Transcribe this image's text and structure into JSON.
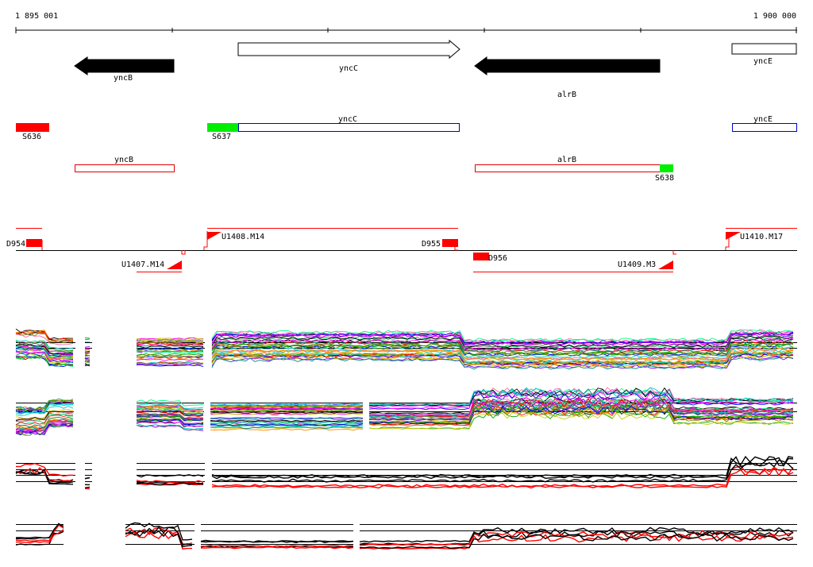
{
  "ruler": {
    "start_label": "1 895 001",
    "end_label": "1 900 000"
  },
  "genes": [
    {
      "id": "yncB",
      "label": "yncB",
      "strand": "-",
      "fill": "#000000"
    },
    {
      "id": "yncC",
      "label": "yncC",
      "strand": "+",
      "fill": "#ffffff"
    },
    {
      "id": "alrB",
      "label": "alrB",
      "strand": "-",
      "fill": "#000000"
    },
    {
      "id": "yncE",
      "label": "yncE",
      "strand": "+",
      "fill": "#ffffff"
    }
  ],
  "segments": [
    {
      "id": "S636",
      "label": "S636",
      "color": "#ff0000"
    },
    {
      "id": "S637",
      "label": "S637",
      "color": "#00ee00"
    },
    {
      "id": "S638",
      "label": "S638",
      "color": "#00ee00"
    }
  ],
  "transcript_boxes": [
    {
      "id": "yncC",
      "label": "yncC",
      "color": "#0000cc"
    },
    {
      "id": "yncE",
      "label": "yncE",
      "color": "#0000cc"
    },
    {
      "id": "yncB",
      "label": "yncB",
      "color": "#dd0000"
    },
    {
      "id": "alrB",
      "label": "alrB",
      "color": "#dd0000"
    }
  ],
  "boundaries": [
    {
      "id": "D954",
      "label": "D954"
    },
    {
      "id": "D955",
      "label": "D955"
    },
    {
      "id": "D956",
      "label": "D956"
    }
  ],
  "upshifts": [
    {
      "id": "U1407.M14",
      "label": "U1407.M14"
    },
    {
      "id": "U1408.M14",
      "label": "U1408.M14"
    },
    {
      "id": "U1409.M3",
      "label": "U1409.M3"
    },
    {
      "id": "U1410.M17",
      "label": "U1410.M17"
    }
  ],
  "colors": {
    "segment_red": "#ff0000",
    "segment_green": "#00ee00",
    "transcript_blue": "#0000cc",
    "transcript_red": "#dd0000",
    "profile_palette": [
      "#000000",
      "#ff0000",
      "#00aa00",
      "#0000ff",
      "#ff00ff",
      "#00cccc",
      "#cccc00",
      "#ff8800",
      "#8800ff",
      "#008888",
      "#888800",
      "#ff66aa",
      "#666666",
      "#00ff88"
    ]
  }
}
